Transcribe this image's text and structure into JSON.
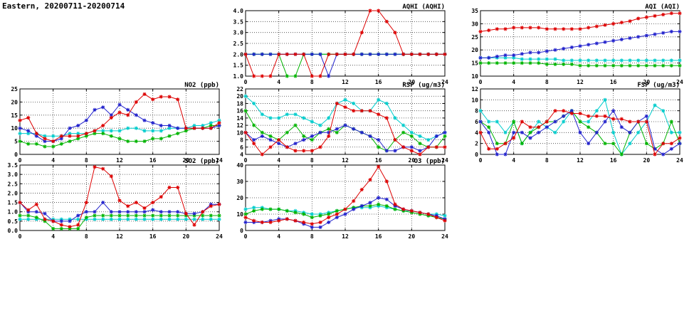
{
  "title": "Eastern, 20200711-20200714",
  "colors": {
    "red": "#dd0000",
    "blue": "#2222cc",
    "green": "#00b400",
    "cyan": "#00cccc"
  },
  "chart_data": [
    {
      "type": "line",
      "title": "AQHI (AQHI)",
      "xlabel": "",
      "ylabel": "",
      "xlim": [
        0,
        24
      ],
      "xticks": [
        0,
        4,
        8,
        12,
        16,
        20,
        24
      ],
      "ylim": [
        1,
        4
      ],
      "yticks": [
        1,
        1.5,
        2,
        2.5,
        3,
        3.5,
        4
      ],
      "ytick_labels": [
        "1.0",
        "1.5",
        "2.0",
        "2.5",
        "3.0",
        "3.5",
        "4.0"
      ],
      "series": [
        {
          "name": "series-cyan",
          "color": "#00cccc",
          "values": [
            2,
            2,
            2,
            2,
            2,
            2,
            2,
            2,
            2,
            2,
            2,
            2,
            2,
            2,
            2,
            2,
            2,
            2,
            2,
            2,
            2,
            2,
            2,
            2,
            2
          ]
        },
        {
          "name": "series-green",
          "color": "#00b400",
          "values": [
            2,
            2,
            2,
            2,
            2,
            1,
            1,
            2,
            2,
            2,
            2,
            2,
            2,
            2,
            2,
            2,
            2,
            2,
            2,
            2,
            2,
            2,
            2,
            2,
            2
          ]
        },
        {
          "name": "series-blue",
          "color": "#2222cc",
          "values": [
            2,
            2,
            2,
            2,
            2,
            2,
            2,
            2,
            2,
            2,
            1,
            2,
            2,
            2,
            2,
            2,
            2,
            2,
            2,
            2,
            2,
            2,
            2,
            2,
            2
          ]
        },
        {
          "name": "series-red",
          "color": "#dd0000",
          "values": [
            2,
            1,
            1,
            1,
            2,
            2,
            2,
            2,
            1,
            1,
            2,
            2,
            2,
            2,
            3,
            4,
            4,
            3.5,
            3,
            2,
            2,
            2,
            2,
            2,
            2
          ]
        }
      ]
    },
    {
      "type": "line",
      "title": "AQI (AQI)",
      "xlabel": "",
      "ylabel": "",
      "xlim": [
        0,
        24
      ],
      "xticks": [
        0,
        4,
        8,
        12,
        16,
        20,
        24
      ],
      "ylim": [
        10,
        35
      ],
      "yticks": [
        10,
        15,
        20,
        25,
        30,
        35
      ],
      "ytick_labels": [
        "10",
        "15",
        "20",
        "25",
        "30",
        "35"
      ],
      "series": [
        {
          "name": "series-cyan",
          "color": "#00cccc",
          "values": [
            17,
            17,
            17,
            17,
            17,
            16.5,
            16.5,
            16.5,
            16.5,
            16.5,
            16,
            16,
            16,
            16,
            16,
            16,
            16,
            16,
            16,
            16,
            16,
            16,
            16,
            16,
            16
          ]
        },
        {
          "name": "series-green",
          "color": "#00b400",
          "values": [
            15,
            15,
            15,
            15,
            15,
            15,
            15,
            15,
            14.5,
            14.5,
            14.5,
            14.5,
            14,
            14,
            14,
            14,
            14,
            14,
            14,
            14,
            14,
            14,
            14,
            14,
            14
          ]
        },
        {
          "name": "series-blue",
          "color": "#2222cc",
          "values": [
            17,
            17,
            17.5,
            18,
            18,
            18.5,
            19,
            19,
            19.5,
            20,
            20.5,
            21,
            21.5,
            22,
            22.5,
            23,
            23.5,
            24,
            24.5,
            25,
            25.5,
            26,
            26.5,
            27,
            27
          ]
        },
        {
          "name": "series-red",
          "color": "#dd0000",
          "values": [
            27,
            27.5,
            28,
            28,
            28.5,
            28.5,
            28.5,
            28.5,
            28,
            28,
            28,
            28,
            28,
            28.5,
            29,
            29.5,
            30,
            30.5,
            31,
            32,
            32.5,
            33,
            33.5,
            34,
            34
          ]
        }
      ]
    },
    {
      "type": "line",
      "title": "NO2 (ppb)",
      "xlabel": "",
      "ylabel": "",
      "xlim": [
        0,
        24
      ],
      "xticks": [
        0,
        4,
        8,
        12,
        16,
        20,
        24
      ],
      "ylim": [
        0,
        25
      ],
      "yticks": [
        0,
        5,
        10,
        15,
        20,
        25
      ],
      "ytick_labels": [
        "0",
        "5",
        "10",
        "15",
        "20",
        "25"
      ],
      "series": [
        {
          "name": "series-cyan",
          "color": "#00cccc",
          "values": [
            8,
            8,
            8,
            7,
            7,
            7,
            8,
            8,
            8,
            9,
            9,
            9,
            9,
            10,
            10,
            9,
            9,
            9,
            10,
            10,
            10,
            11,
            11,
            12,
            13
          ]
        },
        {
          "name": "series-green",
          "color": "#00b400",
          "values": [
            5,
            4,
            4,
            3,
            3,
            4,
            5,
            6,
            7,
            8,
            8,
            7,
            6,
            5,
            5,
            5,
            6,
            6,
            7,
            8,
            9,
            10,
            10,
            11,
            11
          ]
        },
        {
          "name": "series-blue",
          "color": "#2222cc",
          "values": [
            10,
            9,
            7,
            5,
            5,
            6,
            10,
            11,
            13,
            17,
            18,
            15,
            19,
            17,
            15,
            13,
            12,
            11,
            11,
            10,
            10,
            10,
            10,
            10,
            11
          ]
        },
        {
          "name": "series-red",
          "color": "#dd0000",
          "values": [
            13,
            14,
            8,
            6,
            5,
            7,
            7,
            7,
            8,
            9,
            11,
            14,
            16,
            15,
            20,
            23,
            21,
            22,
            22,
            21,
            10,
            10,
            10,
            10,
            12
          ]
        }
      ]
    },
    {
      "type": "line",
      "title": "RSP (ug/m3)",
      "xlabel": "",
      "ylabel": "",
      "xlim": [
        0,
        24
      ],
      "xticks": [
        0,
        4,
        8,
        12,
        16,
        20,
        24
      ],
      "ylim": [
        4,
        22
      ],
      "yticks": [
        4,
        6,
        8,
        10,
        12,
        14,
        16,
        18,
        20,
        22
      ],
      "ytick_labels": [
        "4",
        "6",
        "8",
        "10",
        "12",
        "14",
        "16",
        "18",
        "20",
        "22"
      ],
      "series": [
        {
          "name": "series-cyan",
          "color": "#00cccc",
          "values": [
            20,
            18,
            15,
            14,
            14,
            15,
            15,
            14,
            13,
            12,
            14,
            18,
            19,
            18,
            16,
            16,
            19,
            18,
            14,
            12,
            10,
            9,
            8,
            9,
            10
          ]
        },
        {
          "name": "series-green",
          "color": "#00b400",
          "values": [
            16,
            12,
            10,
            9,
            8,
            10,
            12,
            9,
            8,
            10,
            11,
            10,
            12,
            11,
            10,
            9,
            6,
            5,
            8,
            10,
            9,
            7,
            6,
            6,
            9
          ]
        },
        {
          "name": "series-blue",
          "color": "#2222cc",
          "values": [
            10,
            8,
            9,
            8,
            7,
            6,
            7,
            8,
            9,
            10,
            10,
            11,
            12,
            11,
            10,
            9,
            8,
            5,
            5,
            6,
            6,
            5,
            6,
            9,
            10
          ]
        },
        {
          "name": "series-red",
          "color": "#dd0000",
          "values": [
            10,
            7,
            4,
            6,
            8,
            6,
            5,
            5,
            5,
            6,
            9,
            18,
            17,
            16,
            16,
            16,
            15,
            14,
            8,
            6,
            5,
            4,
            6,
            6,
            6
          ]
        }
      ]
    },
    {
      "type": "line",
      "title": "FSP (ug/m3)",
      "xlabel": "",
      "ylabel": "",
      "xlim": [
        0,
        24
      ],
      "xticks": [
        0,
        4,
        8,
        12,
        16,
        20,
        24
      ],
      "ylim": [
        0,
        12
      ],
      "yticks": [
        0,
        2,
        4,
        6,
        8,
        10,
        12
      ],
      "ytick_labels": [
        "0",
        "2",
        "4",
        "6",
        "8",
        "10",
        "12"
      ],
      "series": [
        {
          "name": "series-cyan",
          "color": "#00cccc",
          "values": [
            8,
            6,
            6,
            4,
            6,
            2,
            4,
            6,
            5,
            4,
            6,
            8,
            6,
            6,
            8,
            10,
            4,
            0,
            2,
            4,
            6,
            9,
            8,
            4,
            4
          ]
        },
        {
          "name": "series-green",
          "color": "#00b400",
          "values": [
            6,
            5,
            2,
            2,
            6,
            2,
            4,
            5,
            6,
            6,
            7,
            8,
            6,
            5,
            4,
            2,
            2,
            0,
            4,
            6,
            2,
            1,
            2,
            6,
            2
          ]
        },
        {
          "name": "series-blue",
          "color": "#2222cc",
          "values": [
            6,
            4,
            0,
            0,
            4,
            4,
            3,
            4,
            5,
            6,
            7,
            8,
            4,
            2,
            4,
            6,
            8,
            5,
            4,
            6,
            7,
            1,
            0,
            1,
            2
          ]
        },
        {
          "name": "series-red",
          "color": "#dd0000",
          "values": [
            4,
            1,
            1,
            2,
            3,
            6,
            5,
            5,
            6,
            8,
            8,
            7.5,
            7.5,
            7,
            7,
            7,
            6.5,
            6.5,
            6,
            6,
            6,
            0,
            2,
            2,
            3
          ]
        }
      ]
    },
    {
      "type": "line",
      "title": "SO2 (ppb)",
      "xlabel": "",
      "ylabel": "",
      "xlim": [
        0,
        24
      ],
      "xticks": [
        0,
        4,
        8,
        12,
        16,
        20,
        24
      ],
      "ylim": [
        0,
        3.5
      ],
      "yticks": [
        0,
        0.5,
        1,
        1.5,
        2,
        2.5,
        3,
        3.5
      ],
      "ytick_labels": [
        "0.0",
        "0.5",
        "1.0",
        "1.5",
        "2.0",
        "2.5",
        "3.0",
        "3.5"
      ],
      "series": [
        {
          "name": "series-cyan",
          "color": "#00cccc",
          "values": [
            0.6,
            0.6,
            0.6,
            0.6,
            0.6,
            0.6,
            0.6,
            0.6,
            0.6,
            0.6,
            0.6,
            0.6,
            0.6,
            0.6,
            0.6,
            0.6,
            0.6,
            0.6,
            0.6,
            0.6,
            0.6,
            0.6,
            0.6,
            0.6,
            0.6
          ]
        },
        {
          "name": "series-green",
          "color": "#00b400",
          "values": [
            0.8,
            0.8,
            0.7,
            0.5,
            0.1,
            0.1,
            0.1,
            0.1,
            0.7,
            0.8,
            0.8,
            0.8,
            0.8,
            0.8,
            0.8,
            0.8,
            0.8,
            0.8,
            0.8,
            0.8,
            0.8,
            0.8,
            0.8,
            0.8,
            0.8
          ]
        },
        {
          "name": "series-blue",
          "color": "#2222cc",
          "values": [
            1.5,
            1.0,
            1.0,
            0.9,
            0.5,
            0.5,
            0.5,
            0.8,
            1.0,
            1.0,
            1.5,
            1.0,
            1.0,
            1.0,
            1.0,
            1.0,
            1.1,
            1.0,
            1.0,
            1.0,
            0.9,
            0.9,
            1.0,
            1.4,
            1.4
          ]
        },
        {
          "name": "series-red",
          "color": "#dd0000",
          "values": [
            1.5,
            1.1,
            1.4,
            0.6,
            0.5,
            0.3,
            0.2,
            0.3,
            1.5,
            3.4,
            3.3,
            2.9,
            1.6,
            1.3,
            1.5,
            1.2,
            1.5,
            1.8,
            2.3,
            2.3,
            0.9,
            0.3,
            1.0,
            1.3,
            1.4
          ]
        }
      ]
    },
    {
      "type": "line",
      "title": "O3 (ppb)",
      "xlabel": "",
      "ylabel": "",
      "xlim": [
        0,
        24
      ],
      "xticks": [
        0,
        4,
        8,
        12,
        16,
        20,
        24
      ],
      "ylim": [
        0,
        40
      ],
      "yticks": [
        0,
        10,
        20,
        30,
        40
      ],
      "ytick_labels": [
        "0",
        "10",
        "20",
        "30",
        "40"
      ],
      "series": [
        {
          "name": "series-cyan",
          "color": "#00cccc",
          "values": [
            13,
            14,
            14,
            13,
            13,
            12,
            12,
            11,
            10,
            10,
            11,
            12,
            13,
            14,
            14,
            14,
            15,
            14,
            13,
            12,
            12,
            11,
            10,
            10,
            9
          ]
        },
        {
          "name": "series-green",
          "color": "#00b400",
          "values": [
            10,
            12,
            13,
            13,
            13,
            12,
            11,
            10,
            8,
            9,
            10,
            12,
            13,
            14,
            15,
            15,
            16,
            15,
            13,
            12,
            11,
            10,
            9,
            8,
            7
          ]
        },
        {
          "name": "series-blue",
          "color": "#2222cc",
          "values": [
            5,
            5,
            5,
            6,
            7,
            7,
            6,
            4,
            2,
            2,
            5,
            8,
            10,
            13,
            15,
            17,
            20,
            19,
            15,
            13,
            12,
            11,
            10,
            9,
            7
          ]
        },
        {
          "name": "series-red",
          "color": "#dd0000",
          "values": [
            8,
            6,
            5,
            5,
            6,
            7,
            6,
            5,
            4,
            5,
            8,
            10,
            13,
            18,
            25,
            31,
            39,
            30,
            16,
            13,
            12,
            11,
            10,
            8,
            6
          ]
        }
      ]
    }
  ]
}
